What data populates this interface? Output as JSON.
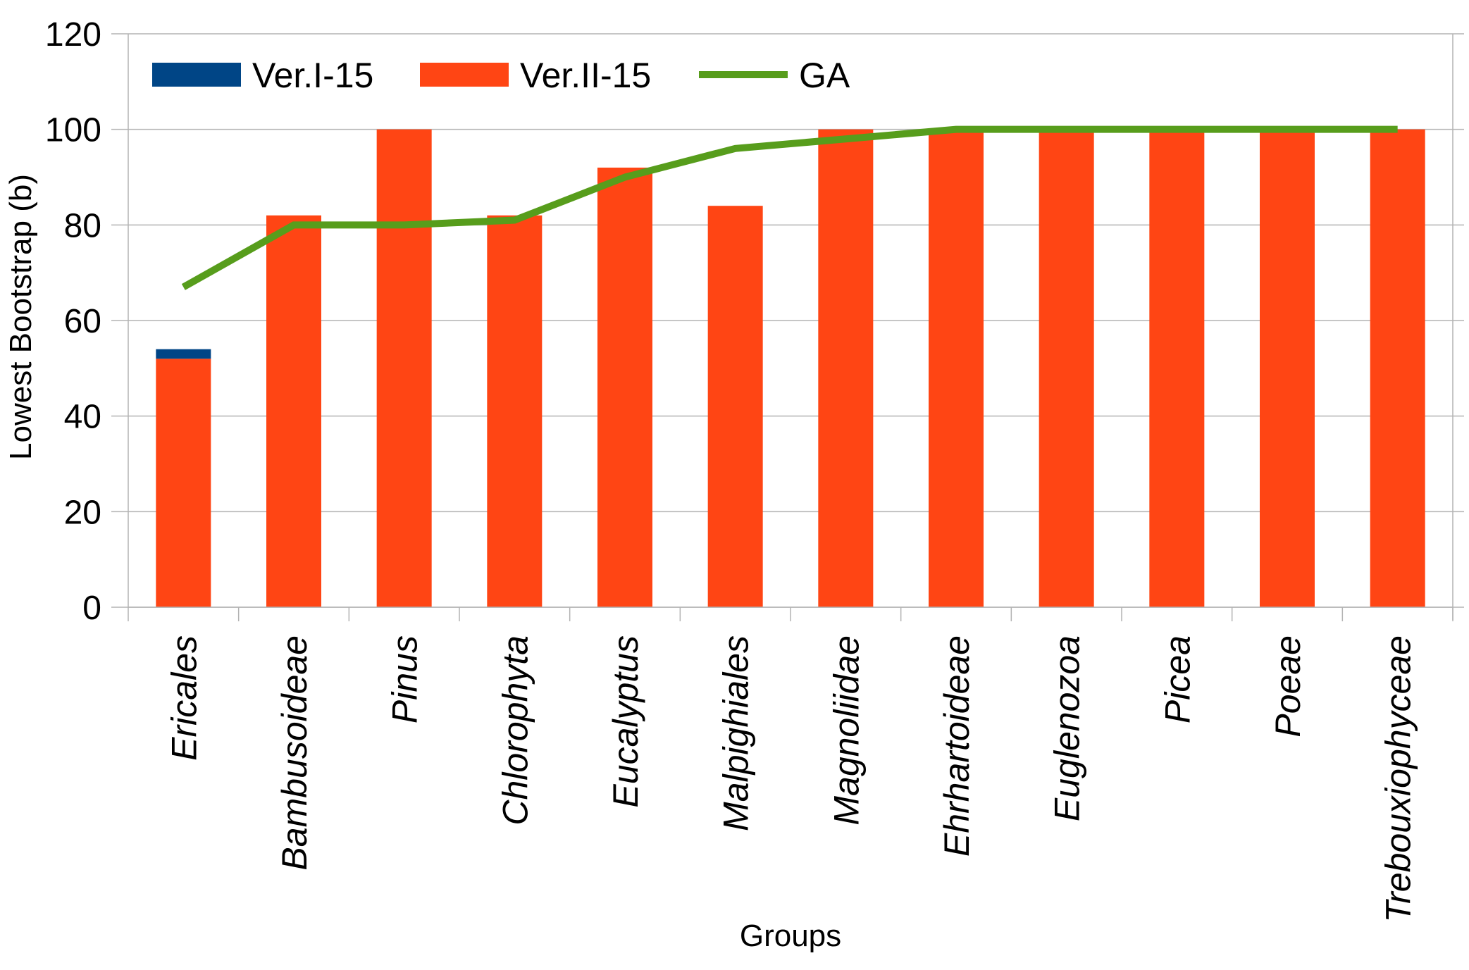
{
  "chart_data": {
    "type": "bar",
    "stacked": true,
    "title": "",
    "xlabel": "Groups",
    "ylabel": "Lowest Bootstrap (b)",
    "ylim": [
      0,
      120
    ],
    "yticks": [
      0,
      20,
      40,
      60,
      80,
      100,
      120
    ],
    "grid": true,
    "legend_position": "top-left",
    "categories": [
      "Ericales",
      "Bambusoideae",
      "Pinus",
      "Chlorophyta",
      "Eucalyptus",
      "Malpighiales",
      "Magnoliidae",
      "Ehrhartoideae",
      "Euglenozoa",
      "Picea",
      "Poeae",
      "Trebouxiophyceae"
    ],
    "series": [
      {
        "name": "Ver.II-15",
        "type": "bar",
        "color": "#FF4514",
        "values": [
          52,
          82,
          100,
          82,
          92,
          84,
          100,
          100,
          100,
          100,
          100,
          100
        ]
      },
      {
        "name": "Ver.I-15",
        "type": "bar",
        "color": "#004586",
        "values": [
          2,
          0,
          0,
          0,
          0,
          0,
          0,
          0,
          0,
          0,
          0,
          0
        ]
      },
      {
        "name": "GA",
        "type": "line",
        "color": "#579D1C",
        "values": [
          67,
          80,
          80,
          81,
          90,
          96,
          98,
          100,
          100,
          100,
          100,
          100
        ]
      }
    ],
    "legend": [
      "Ver.I-15",
      "Ver.II-15",
      "GA"
    ]
  }
}
